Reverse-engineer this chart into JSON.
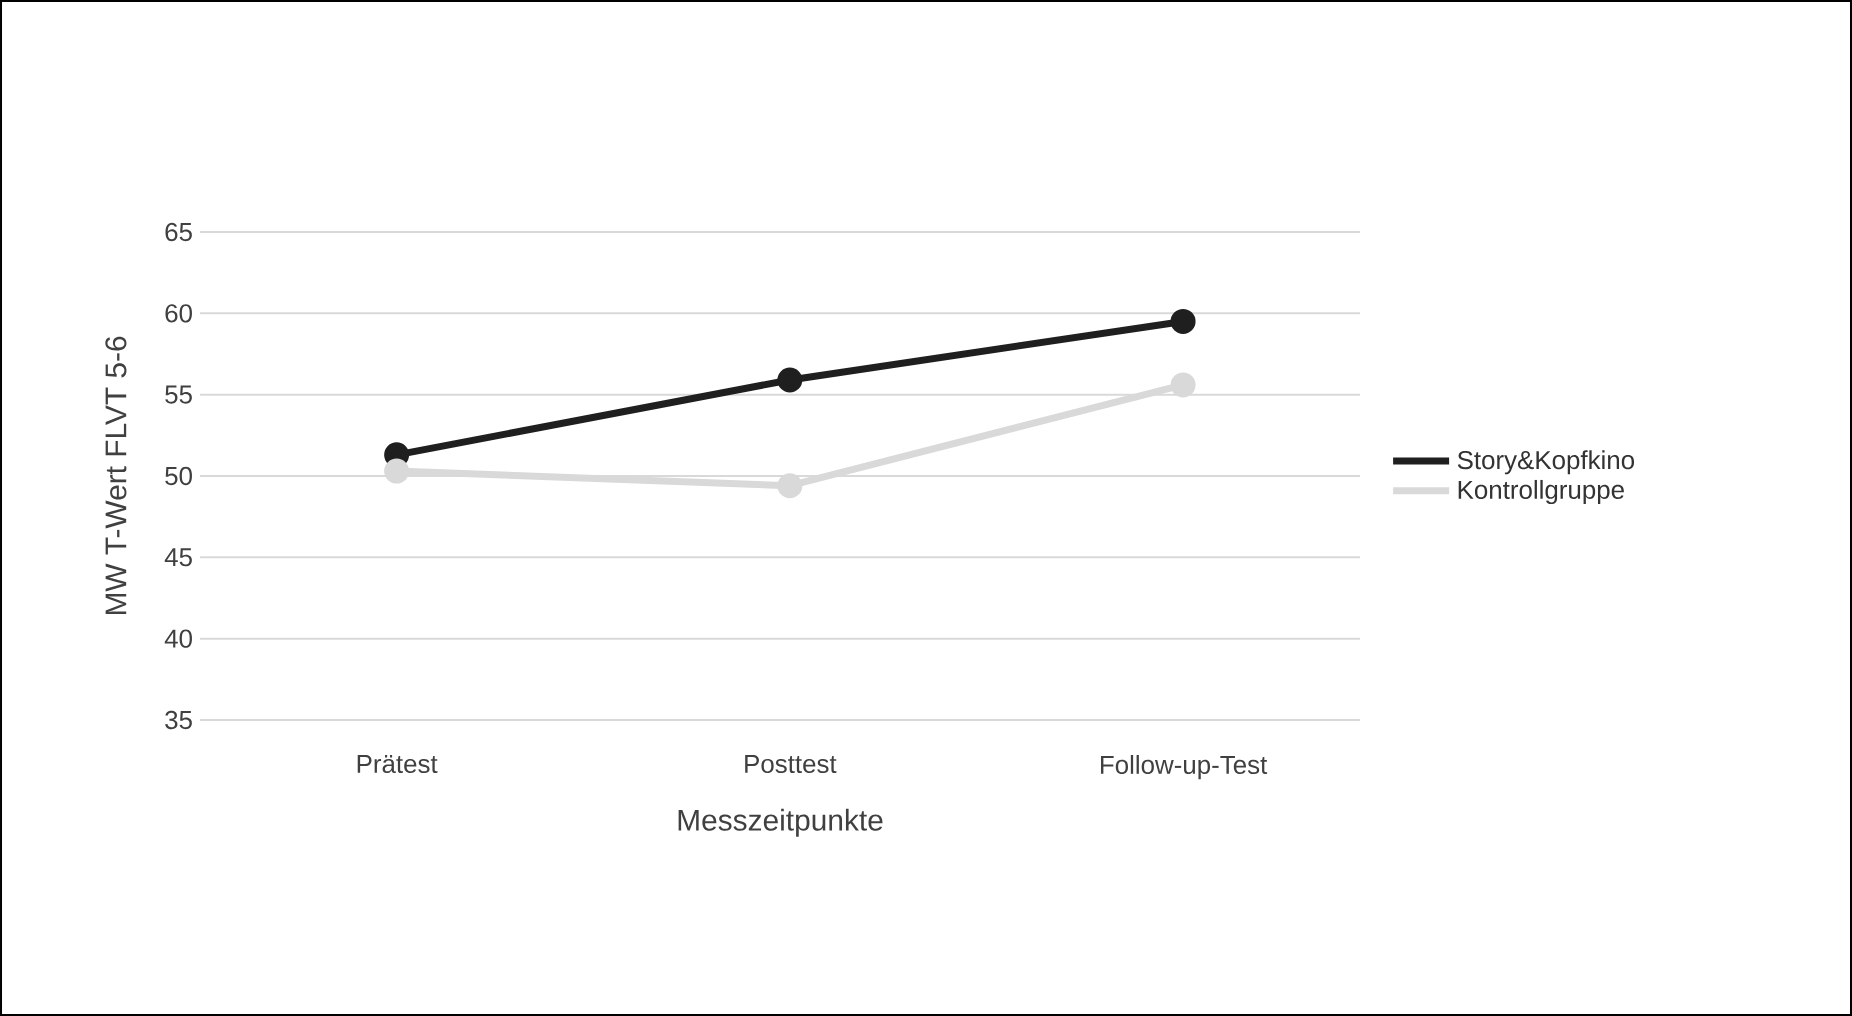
{
  "chart_data": {
    "type": "line",
    "xlabel": "Messzeitpunkte",
    "ylabel": "MW T-Wert FLVT 5-6",
    "categories": [
      "Prätest",
      "Posttest",
      "Follow-up-Test"
    ],
    "series": [
      {
        "name": "Story&Kopfkino",
        "color": "#1f1f1f",
        "values": [
          51.3,
          55.9,
          59.5
        ]
      },
      {
        "name": "Kontrollgruppe",
        "color": "#d9d9d9",
        "values": [
          50.3,
          49.4,
          55.6
        ]
      }
    ],
    "ylim": [
      35,
      65
    ],
    "yticks": [
      35,
      40,
      45,
      50,
      55,
      60,
      65
    ],
    "grid": "y",
    "legend": "right",
    "marker": "circle",
    "line_style": "solid"
  }
}
